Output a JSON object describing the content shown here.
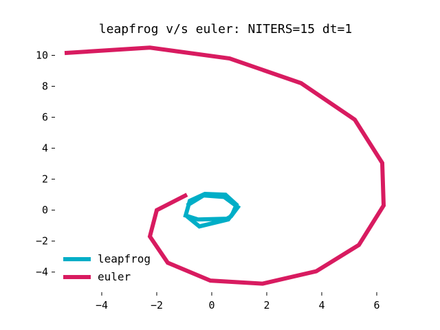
{
  "chart_data": {
    "type": "line",
    "title": "leapfrog v/s euler: NITERS=15 dt=1",
    "xlabel": "",
    "ylabel": "",
    "xlim": [
      -5.7,
      6.7
    ],
    "ylim": [
      -5.3,
      11.0
    ],
    "grid": false,
    "legend_position": "lower-left",
    "x_ticks": [
      -4,
      -2,
      0,
      2,
      4,
      6
    ],
    "y_ticks": [
      10,
      8,
      6,
      4,
      2,
      0,
      -2,
      -4
    ],
    "series": [
      {
        "name": "leapfrog",
        "color": "#00aec7",
        "x": [
          -0.9,
          -0.3,
          0.45,
          0.95,
          0.7,
          0.55,
          -0.5,
          -0.95,
          -0.8,
          -0.25,
          0.5,
          0.9,
          0.75,
          0.6,
          -0.45,
          -0.9
        ],
        "y": [
          0.3,
          0.95,
          0.85,
          0.2,
          -0.4,
          -0.55,
          -0.6,
          -0.35,
          0.6,
          1.05,
          1.0,
          0.35,
          -0.25,
          -0.6,
          -1.05,
          -0.4
        ]
      },
      {
        "name": "euler",
        "color": "#d81b60",
        "x": [
          -0.9,
          -2.0,
          -2.25,
          -1.6,
          -0.05,
          1.85,
          3.8,
          5.35,
          6.25,
          6.2,
          5.2,
          3.25,
          0.65,
          -2.25,
          -5.35
        ],
        "y": [
          1.0,
          0.0,
          -1.7,
          -3.4,
          -4.55,
          -4.75,
          -3.95,
          -2.25,
          0.3,
          3.05,
          5.85,
          8.2,
          9.8,
          10.5,
          10.15
        ]
      }
    ]
  }
}
